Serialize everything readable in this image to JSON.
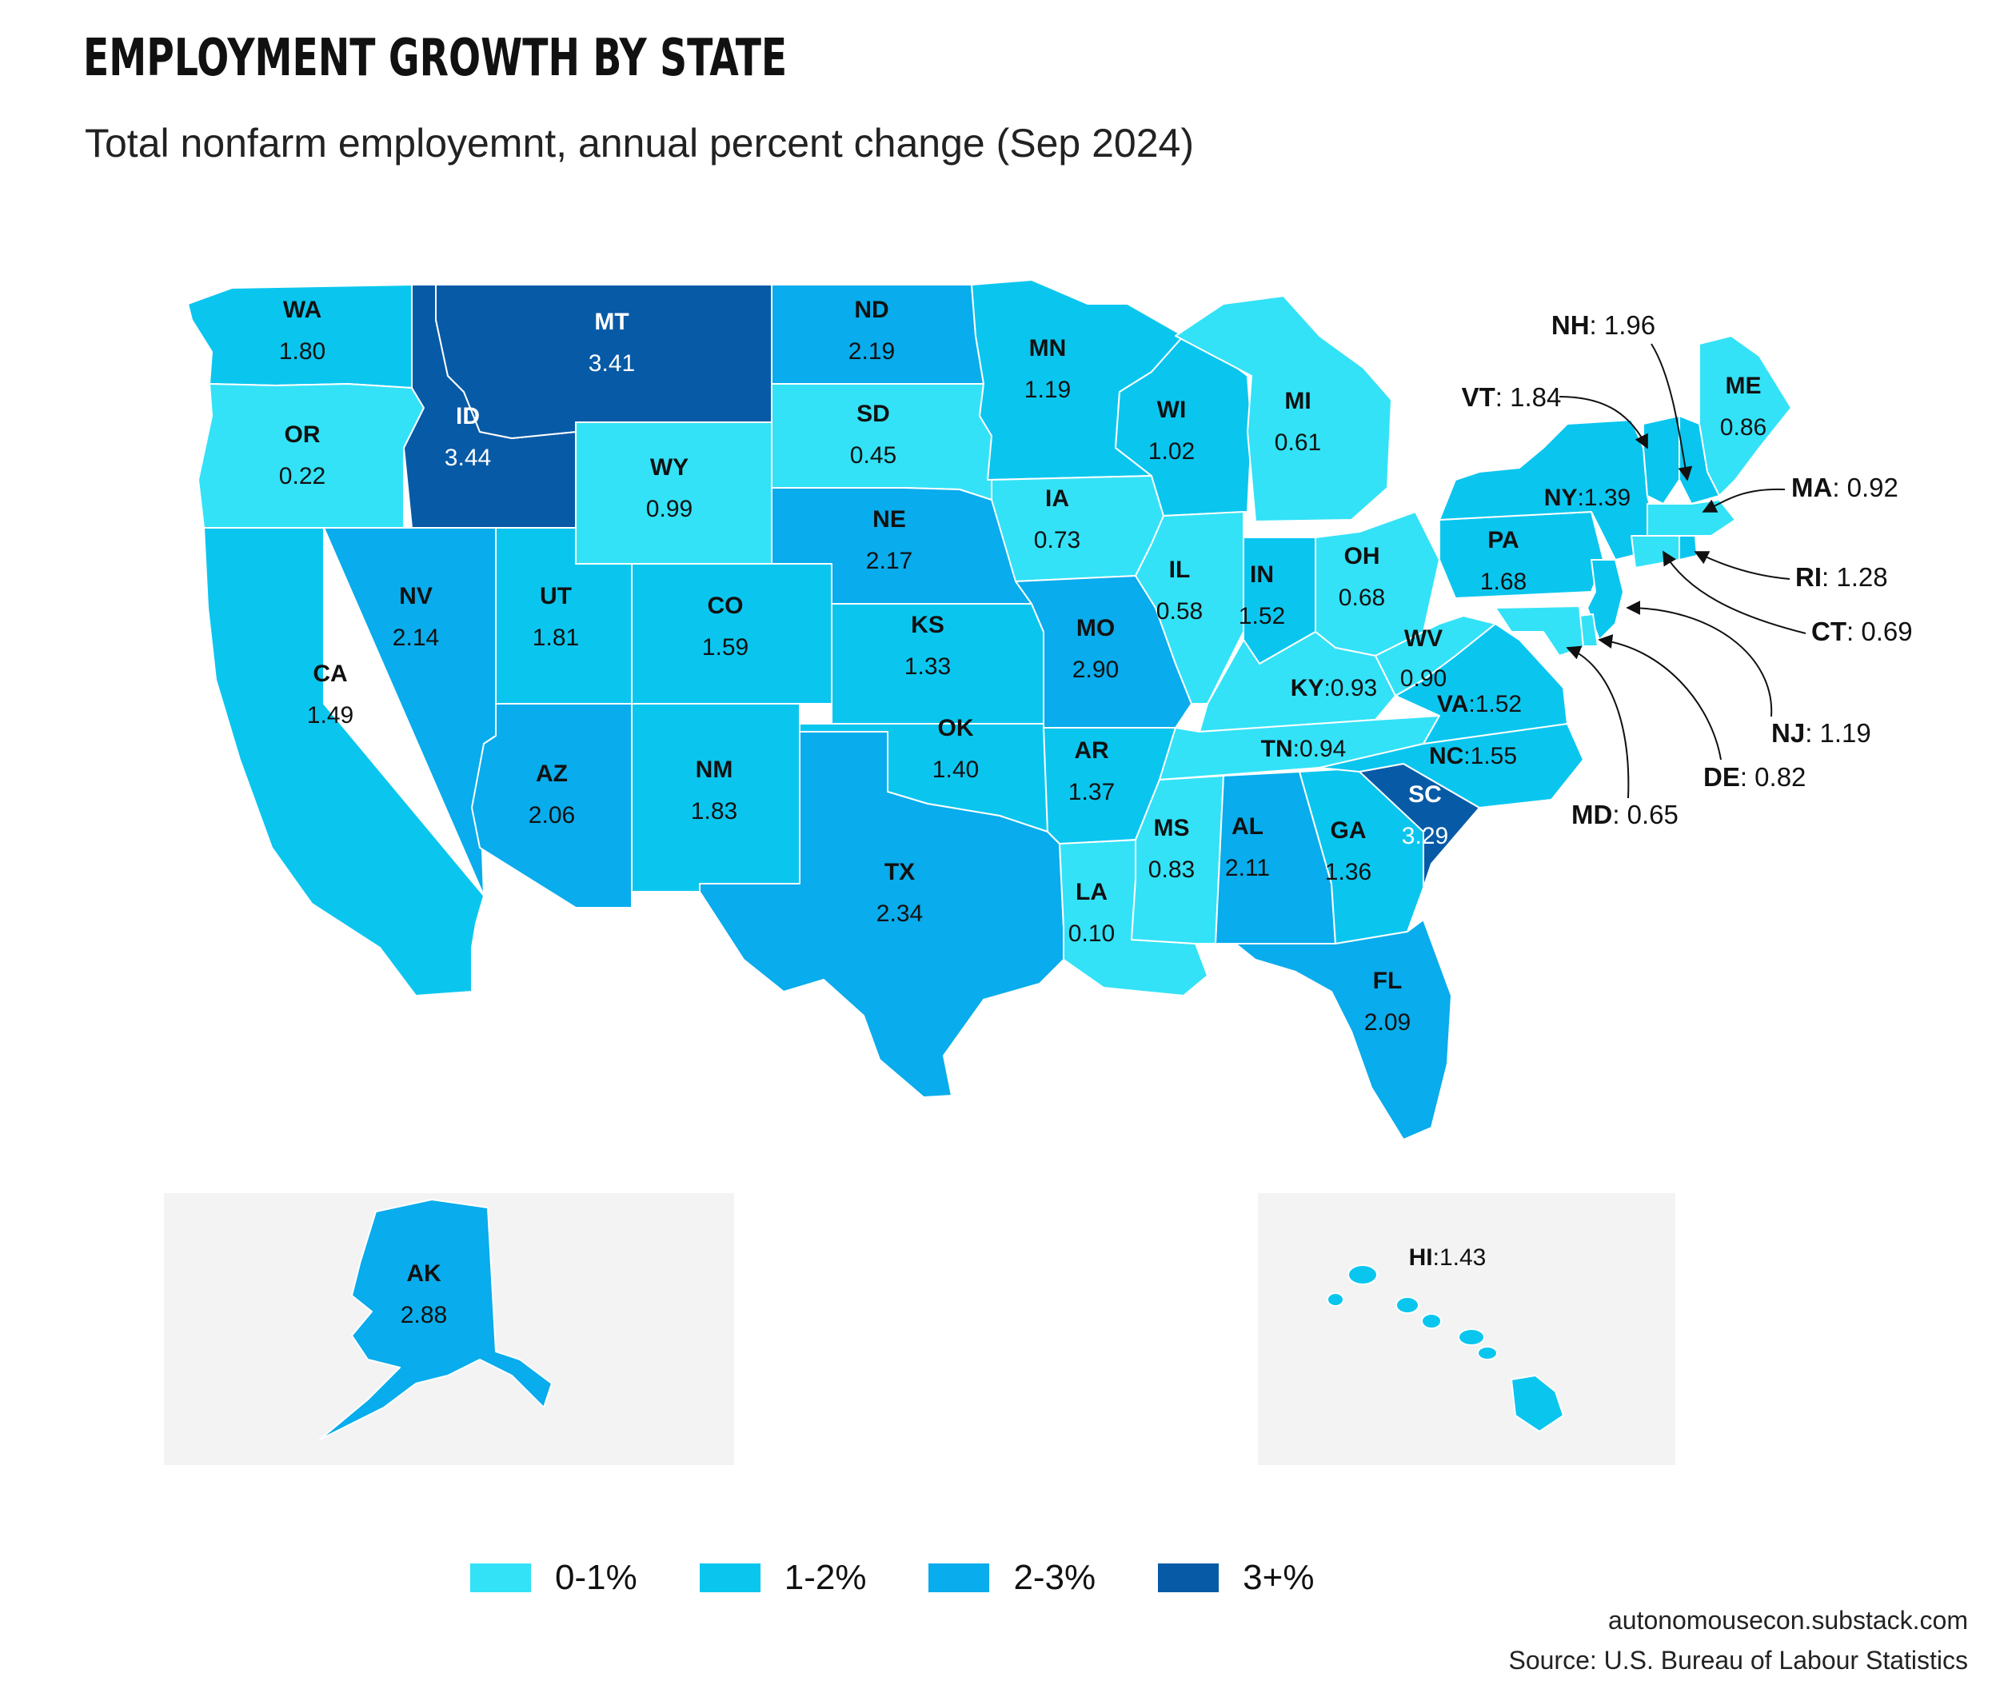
{
  "title": "EMPLOYMENT GROWTH BY STATE",
  "subtitle": "Total nonfarm employemnt, annual percent change (Sep 2024)",
  "colors": {
    "0-1": "#33e2f7",
    "1-2": "#0ac6ef",
    "2-3": "#09acec",
    "3+": "#075aa6",
    "inset_bg": "#f3f3f3"
  },
  "legend": [
    {
      "label": "0-1%",
      "color": "#33e2f7"
    },
    {
      "label": "1-2%",
      "color": "#0ac6ef"
    },
    {
      "label": "2-3%",
      "color": "#09acec"
    },
    {
      "label": "3+%",
      "color": "#075aa6"
    }
  ],
  "states": [
    {
      "abbr": "WA",
      "value": "1.80"
    },
    {
      "abbr": "OR",
      "value": "0.22"
    },
    {
      "abbr": "CA",
      "value": "1.49"
    },
    {
      "abbr": "ID",
      "value": "3.44"
    },
    {
      "abbr": "NV",
      "value": "2.14"
    },
    {
      "abbr": "MT",
      "value": "3.41"
    },
    {
      "abbr": "WY",
      "value": "0.99"
    },
    {
      "abbr": "UT",
      "value": "1.81"
    },
    {
      "abbr": "AZ",
      "value": "2.06"
    },
    {
      "abbr": "CO",
      "value": "1.59"
    },
    {
      "abbr": "NM",
      "value": "1.83"
    },
    {
      "abbr": "ND",
      "value": "2.19"
    },
    {
      "abbr": "SD",
      "value": "0.45"
    },
    {
      "abbr": "NE",
      "value": "2.17"
    },
    {
      "abbr": "KS",
      "value": "1.33"
    },
    {
      "abbr": "OK",
      "value": "1.40"
    },
    {
      "abbr": "TX",
      "value": "2.34"
    },
    {
      "abbr": "MN",
      "value": "1.19"
    },
    {
      "abbr": "IA",
      "value": "0.73"
    },
    {
      "abbr": "MO",
      "value": "2.90"
    },
    {
      "abbr": "AR",
      "value": "1.37"
    },
    {
      "abbr": "LA",
      "value": "0.10"
    },
    {
      "abbr": "WI",
      "value": "1.02"
    },
    {
      "abbr": "IL",
      "value": "0.58"
    },
    {
      "abbr": "MI",
      "value": "0.61"
    },
    {
      "abbr": "IN",
      "value": "1.52"
    },
    {
      "abbr": "OH",
      "value": "0.68"
    },
    {
      "abbr": "KY",
      "value": "0.93"
    },
    {
      "abbr": "TN",
      "value": "0.94"
    },
    {
      "abbr": "MS",
      "value": "0.83"
    },
    {
      "abbr": "AL",
      "value": "2.11"
    },
    {
      "abbr": "GA",
      "value": "1.36"
    },
    {
      "abbr": "FL",
      "value": "2.09"
    },
    {
      "abbr": "SC",
      "value": "3.29"
    },
    {
      "abbr": "NC",
      "value": "1.55"
    },
    {
      "abbr": "VA",
      "value": "1.52"
    },
    {
      "abbr": "WV",
      "value": "0.90"
    },
    {
      "abbr": "PA",
      "value": "1.68"
    },
    {
      "abbr": "NY",
      "value": "1.39"
    },
    {
      "abbr": "ME",
      "value": "0.86"
    },
    {
      "abbr": "AK",
      "value": "2.88"
    },
    {
      "abbr": "HI",
      "value": "1.43"
    }
  ],
  "callouts": [
    {
      "abbr": "NH",
      "value": "1.96"
    },
    {
      "abbr": "VT",
      "value": "1.84"
    },
    {
      "abbr": "MA",
      "value": "0.92"
    },
    {
      "abbr": "RI",
      "value": "1.28"
    },
    {
      "abbr": "CT",
      "value": "0.69"
    },
    {
      "abbr": "NJ",
      "value": "1.19"
    },
    {
      "abbr": "DE",
      "value": "0.82"
    },
    {
      "abbr": "MD",
      "value": "0.65"
    }
  ],
  "credits": {
    "site": "autonomousecon.substack.com",
    "source": "Source: U.S. Bureau of Labour Statistics"
  }
}
